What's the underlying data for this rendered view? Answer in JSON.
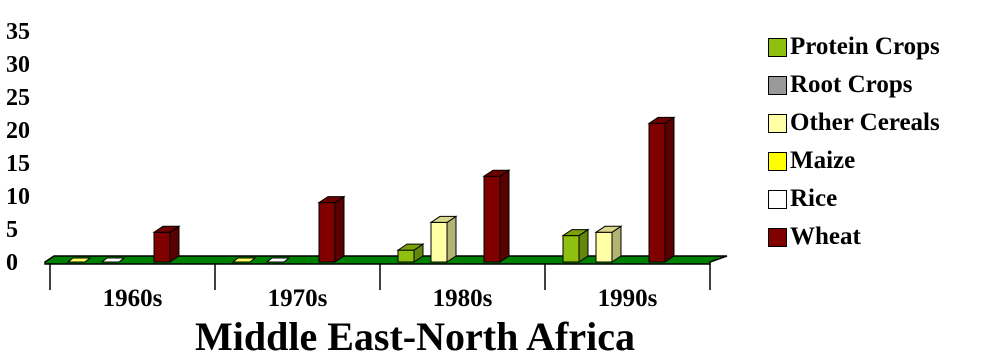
{
  "chart_data": {
    "type": "bar",
    "title": "",
    "xlabel": "Middle East-North Africa",
    "ylabel": "",
    "ylim": [
      0,
      35
    ],
    "y_ticks": [
      "0",
      "5",
      "10",
      "15",
      "20",
      "25",
      "30",
      "35"
    ],
    "categories": [
      "1960s",
      "1970s",
      "1980s",
      "1990s"
    ],
    "series": [
      {
        "name": "Protein Crops",
        "color": "#8fbf0f",
        "values": [
          0,
          0,
          1.8,
          4.0
        ]
      },
      {
        "name": "Root Crops",
        "color": "#999999",
        "values": [
          0,
          0,
          0,
          0
        ]
      },
      {
        "name": "Other Cereals",
        "color": "#ffffa6",
        "values": [
          0,
          0,
          6.0,
          4.5
        ]
      },
      {
        "name": "Maize",
        "color": "#ffff00",
        "values": [
          0,
          0,
          0,
          0
        ]
      },
      {
        "name": "Rice",
        "color": "#ffffff",
        "values": [
          0,
          0,
          0,
          0
        ]
      },
      {
        "name": "Wheat",
        "color": "#800000",
        "values": [
          4.5,
          9.0,
          13.0,
          21.0
        ]
      }
    ],
    "floor_color": "#008000",
    "grid": false,
    "legend_position": "right"
  }
}
